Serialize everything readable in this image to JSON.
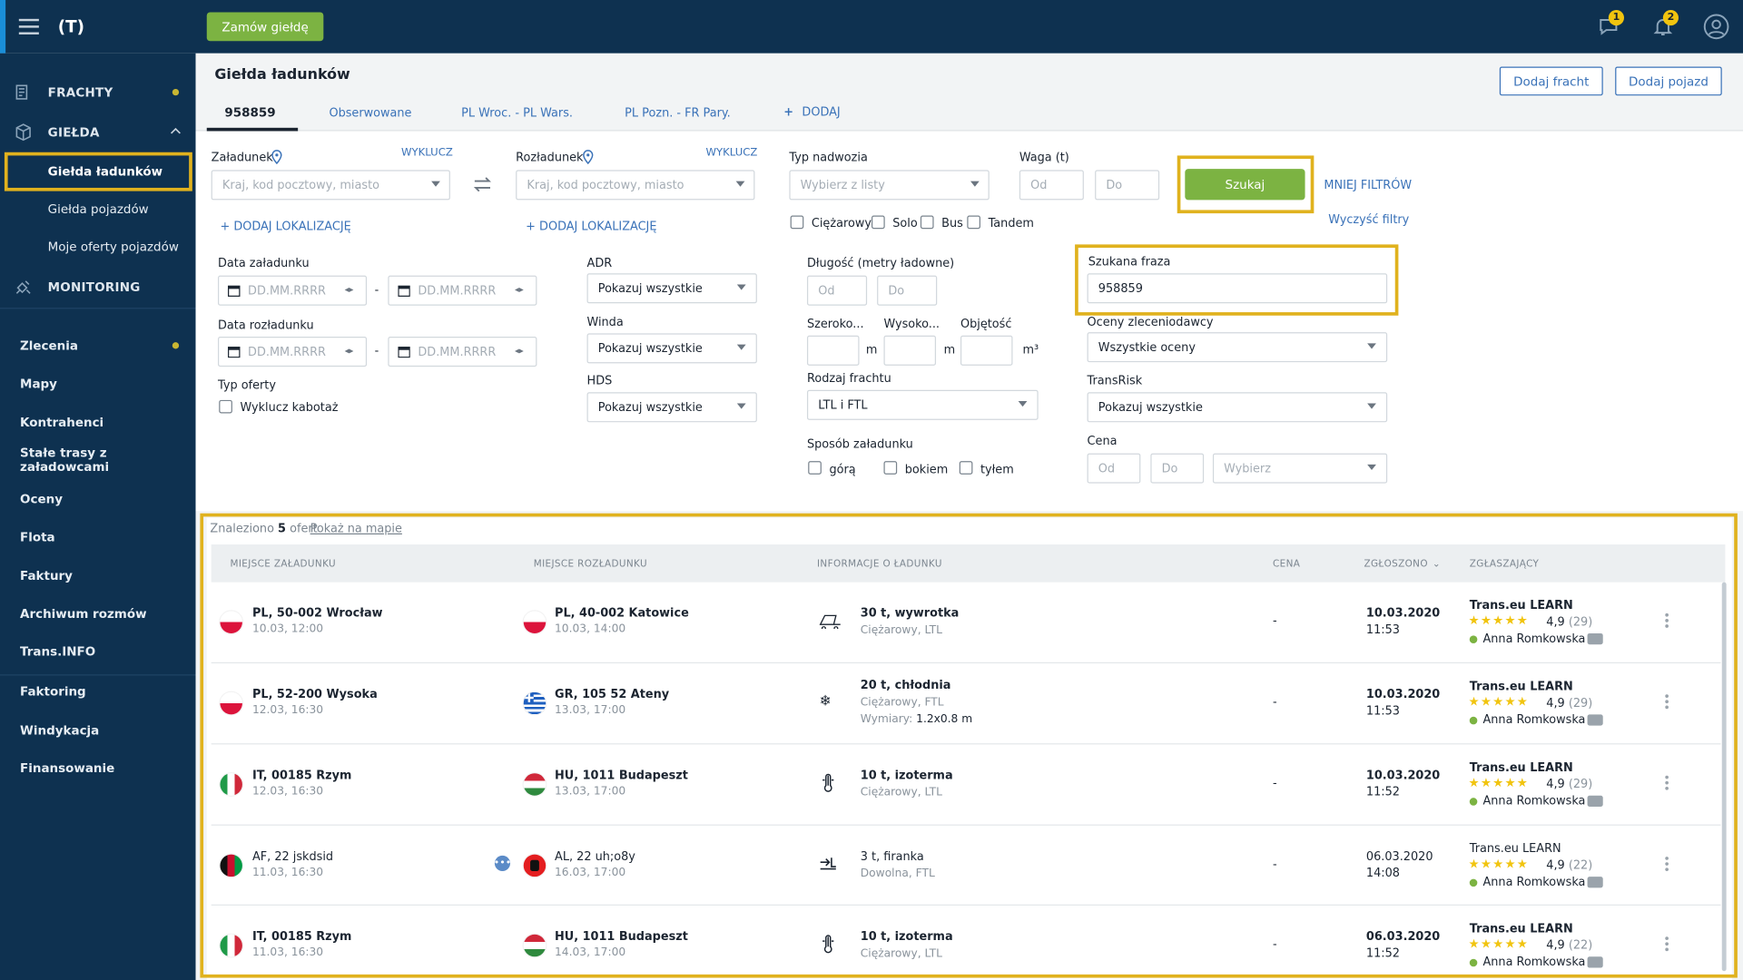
{
  "topbar": {
    "order_button": "Zamów giełdę",
    "messages_count": "1",
    "notifications_count": "2"
  },
  "sidebar": {
    "frachty": "FRACHTY",
    "gielda": "GIEŁDA",
    "gielda_items": [
      "Giełda ładunków",
      "Giełda pojazdów",
      "Moje oferty pojazdów"
    ],
    "monitoring": "MONITORING",
    "links": [
      "Zlecenia",
      "Mapy",
      "Kontrahenci",
      "Stałe trasy z załadowcami",
      "Oceny",
      "Flota",
      "Faktury",
      "Archiwum rozmów",
      "Trans.INFO",
      "Faktoring",
      "Windykacja",
      "Finansowanie"
    ]
  },
  "page": {
    "title": "Giełda ładunków",
    "add_freight": "Dodaj fracht",
    "add_vehicle": "Dodaj pojazd",
    "tabs": [
      "958859",
      "Obserwowane",
      "PL Wroc. - PL Wars.",
      "PL Pozn. - FR Pary."
    ],
    "add_tab": "DODAJ"
  },
  "filters": {
    "loading_label": "Załadunek",
    "unloading_label": "Rozładunek",
    "exclude": "WYKLUCZ",
    "location_placeholder": "Kraj, kod pocztowy, miasto",
    "add_location": "DODAJ LOKALIZACJĘ",
    "body_type_label": "Typ nadwozia",
    "body_type_placeholder": "Wybierz z listy",
    "weight_label": "Waga (t)",
    "from": "Od",
    "to": "Do",
    "search_button": "Szukaj",
    "less_filters": "MNIEJ FILTRÓW",
    "clear_filters": "Wyczyść filtry",
    "vehicle_checks": [
      "Ciężarowy",
      "Solo",
      "Bus",
      "Tandem"
    ],
    "loading_date_label": "Data załadunku",
    "unloading_date_label": "Data rozładunku",
    "date_placeholder": "DD.MM.RRRR",
    "offer_type_label": "Typ oferty",
    "exclude_cabotage": "Wyklucz kabotaż",
    "adr_label": "ADR",
    "winda_label": "Winda",
    "hds_label": "HDS",
    "show_all": "Pokazuj wszystkie",
    "length_label": "Długość (metry ładowne)",
    "width_label": "Szeroko...",
    "height_label": "Wysoko...",
    "volume_label": "Objętość",
    "unit_m": "m",
    "unit_m3": "m³",
    "freight_type_label": "Rodzaj frachtu",
    "freight_type_value": "LTL i FTL",
    "loading_method_label": "Sposób załadunku",
    "loading_methods": [
      "górą",
      "bokiem",
      "tyłem"
    ],
    "phrase_label": "Szukana fraza",
    "phrase_value": "958859",
    "ratings_label": "Oceny zleceniodawcy",
    "ratings_value": "Wszystkie oceny",
    "transrisk_label": "TransRisk",
    "price_label": "Cena",
    "price_select": "Wybierz"
  },
  "results": {
    "found_prefix": "Znaleziono",
    "found_count": "5",
    "found_suffix": "ofert",
    "show_on_map": "Pokaż na mapie",
    "headers": [
      "MIEJSCE ZAŁADUNKU",
      "MIEJSCE ROZŁADUNKU",
      "INFORMACJE O ŁADUNKU",
      "CENA",
      "ZGŁOSZONO",
      "ZGŁASZAJĄCY"
    ],
    "rows": [
      {
        "from": "PL, 50-002 Wrocław",
        "from_date": "10.03, 12:00",
        "to": "PL, 40-002 Katowice",
        "to_date": "10.03, 14:00",
        "cargo": "30 t, wywrotka",
        "cargo_sub": "Ciężarowy, LTL",
        "dims_label": "",
        "dims": "",
        "price": "-",
        "date": "10.03.2020",
        "time": "11:53",
        "company": "Trans.eu LEARN",
        "rating": "4,9",
        "reviews": "(29)",
        "person": "Anna Romkowska",
        "icon": "tipper-icon"
      },
      {
        "from": "PL, 52-200 Wysoka",
        "from_date": "12.03, 16:30",
        "to": "GR, 105 52 Ateny",
        "to_date": "13.03, 17:00",
        "cargo": "20 t, chłodnia",
        "cargo_sub": "Ciężarowy, FTL",
        "dims_label": "Wymiary:",
        "dims": "1.2x0.8 m",
        "price": "-",
        "date": "10.03.2020",
        "time": "11:53",
        "company": "Trans.eu LEARN",
        "rating": "4,9",
        "reviews": "(29)",
        "person": "Anna Romkowska",
        "icon": "snowflake-icon"
      },
      {
        "from": "IT, 00185 Rzym",
        "from_date": "12.03, 16:30",
        "to": "HU, 1011 Budapeszt",
        "to_date": "13.03, 17:00",
        "cargo": "10 t, izoterma",
        "cargo_sub": "Ciężarowy, LTL",
        "dims_label": "",
        "dims": "",
        "price": "-",
        "date": "10.03.2020",
        "time": "11:52",
        "company": "Trans.eu LEARN",
        "rating": "4,9",
        "reviews": "(29)",
        "person": "Anna Romkowska",
        "icon": "thermometer-icon"
      },
      {
        "from": "AF, 22 jskdsid",
        "from_date": "11.03, 16:30",
        "to": "AL, 22 uh;o8y",
        "to_date": "16.03, 17:00",
        "cargo": "3 t, firanka",
        "cargo_sub": "Dowolna, FTL",
        "dims_label": "",
        "dims": "",
        "price": "-",
        "date": "06.03.2020",
        "time": "14:08",
        "company": "Trans.eu LEARN",
        "rating": "4,9",
        "reviews": "(22)",
        "person": "Anna Romkowska",
        "icon": "curtain-icon"
      },
      {
        "from": "IT, 00185 Rzym",
        "from_date": "11.03, 16:30",
        "to": "HU, 1011 Budapeszt",
        "to_date": "14.03, 17:00",
        "cargo": "10 t, izoterma",
        "cargo_sub": "Ciężarowy, LTL",
        "dims_label": "",
        "dims": "",
        "price": "-",
        "date": "06.03.2020",
        "time": "11:52",
        "company": "Trans.eu LEARN",
        "rating": "4,9",
        "reviews": "(22)",
        "person": "Anna Romkowska",
        "icon": "thermometer-icon"
      }
    ]
  }
}
